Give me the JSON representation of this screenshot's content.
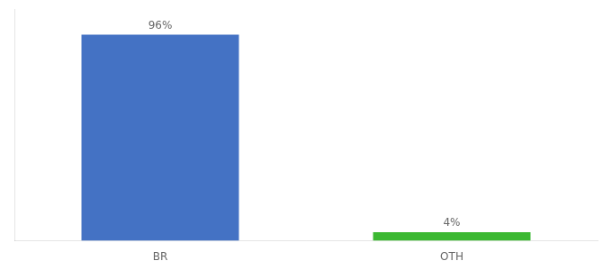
{
  "chart_data": {
    "type": "bar",
    "categories": [
      "BR",
      "OTH"
    ],
    "values": [
      96,
      4
    ],
    "value_labels": [
      "96%",
      "4%"
    ],
    "colors": [
      "#4472c4",
      "#3cb832"
    ],
    "ylim": [
      0,
      108
    ],
    "data_labels": true,
    "tick_labels": "x",
    "grid": false
  }
}
